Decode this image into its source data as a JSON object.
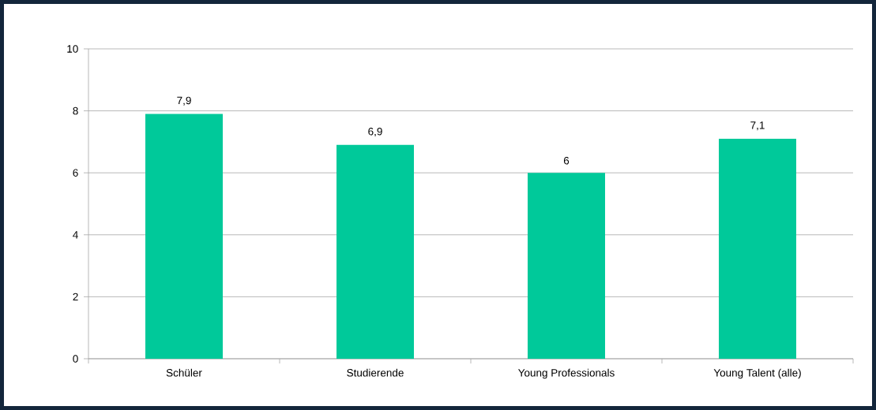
{
  "chart_data": {
    "type": "bar",
    "categories": [
      "Schüler",
      "Studierende",
      "Young Professionals",
      "Young Talent (alle)"
    ],
    "values": [
      7.9,
      6.9,
      6,
      7.1
    ],
    "value_labels": [
      "7,9",
      "6,9",
      "6",
      "7,1"
    ],
    "color": "#00c99a",
    "ylim": [
      0,
      10
    ],
    "yticks": [
      0,
      2,
      4,
      6,
      8,
      10
    ],
    "grid": "y"
  }
}
